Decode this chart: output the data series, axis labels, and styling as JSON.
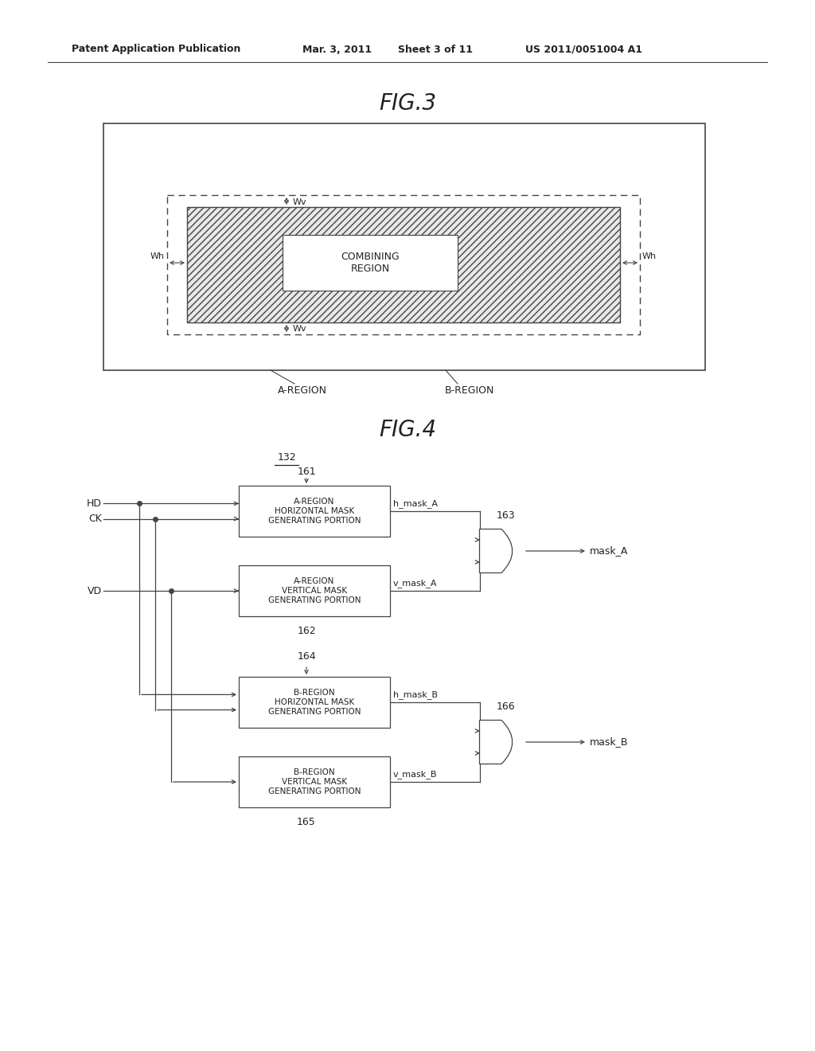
{
  "bg_color": "#ffffff",
  "header_line1": "Patent Application Publication",
  "header_line2": "Mar. 3, 2011",
  "header_line3": "Sheet 3 of 11",
  "header_line4": "US 2011/0051004 A1",
  "fig3_title": "FIG.3",
  "fig4_title": "FIG.4",
  "combining_region_label": "COMBINING\nREGION",
  "wv_label": "Wv",
  "wh_label": "Wh",
  "a_region_label": "A-REGION",
  "b_region_label": "B-REGION",
  "module_132": "132",
  "box161_label": "161",
  "box162_label": "162",
  "box164_label": "164",
  "box165_label": "165",
  "box163_label": "163",
  "box166_label": "166",
  "box1_text": "A-REGION\nHORIZONTAL MASK\nGENERATING PORTION",
  "box2_text": "A-REGION\nVERTICAL MASK\nGENERATING PORTION",
  "box3_text": "B-REGION\nHORIZONTAL MASK\nGENERATING PORTION",
  "box4_text": "B-REGION\nVERTICAL MASK\nGENERATING PORTION",
  "hd_label": "HD",
  "ck_label": "CK",
  "vd_label": "VD",
  "h_mask_a": "h_mask_A",
  "v_mask_a": "v_mask_A",
  "h_mask_b": "h_mask_B",
  "v_mask_b": "v_mask_B",
  "mask_a": "mask_A",
  "mask_b": "mask_B"
}
